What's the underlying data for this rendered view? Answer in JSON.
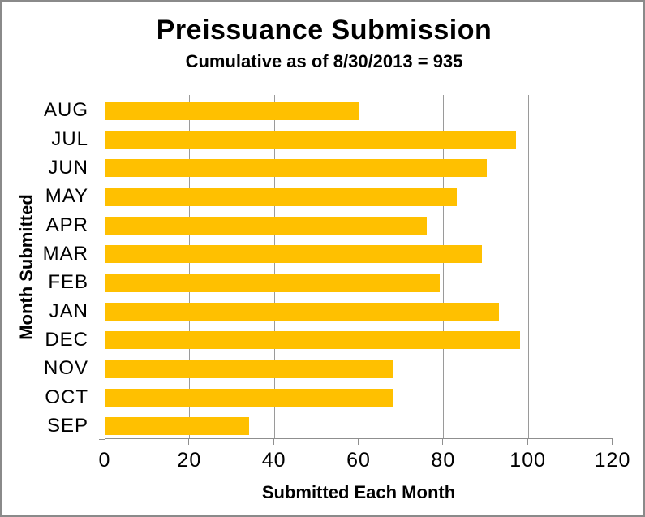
{
  "window": {
    "background": "#ffffff",
    "border_color": "#8a8a8a"
  },
  "chart_data": {
    "type": "bar",
    "orientation": "horizontal",
    "title": "Preissuance Submission",
    "subtitle": "Cumulative as of 8/30/2013 = 935",
    "xlabel": "Submitted Each Month",
    "ylabel": "Month Submitted",
    "categories": [
      "AUG",
      "JUL",
      "JUN",
      "MAY",
      "APR",
      "MAR",
      "FEB",
      "JAN",
      "DEC",
      "NOV",
      "OCT",
      "SEP"
    ],
    "values": [
      60,
      97,
      90,
      83,
      76,
      89,
      79,
      93,
      98,
      68,
      68,
      34
    ],
    "cumulative_total": 935,
    "xlim": [
      0,
      120
    ],
    "xticks": [
      0,
      20,
      40,
      60,
      80,
      100,
      120
    ],
    "grid": true,
    "legend": "none",
    "bar_color": "#FFC000",
    "gridline_color": "#9a9a9a",
    "axis_color": "#8f8f8f",
    "text_color": "#000000"
  }
}
